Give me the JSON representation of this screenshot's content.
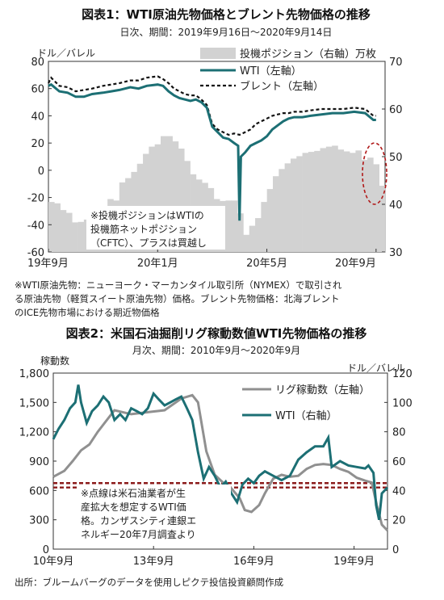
{
  "chart_data": [
    {
      "type": "line",
      "title": "図表1：WTI原油先物価格とブレント先物価格の推移",
      "subtitle": "日次、期間：2019年9月16日～2020年9月14日",
      "ylabel_left": "ドル／バレル",
      "ylim_left": [
        -60,
        80
      ],
      "ylim_right": [
        30,
        70
      ],
      "y_ticks_left": [
        "80",
        "60",
        "40",
        "20",
        "0",
        "-20",
        "-40",
        "-60"
      ],
      "y_ticks_right": [
        "70",
        "60",
        "50",
        "40",
        "30"
      ],
      "x_ticks": [
        "19年9月",
        "20年1月",
        "20年5月",
        "20年9月"
      ],
      "x_tick_pos": [
        0,
        4,
        8,
        12
      ],
      "series": [
        {
          "name": "投機ポジション（右軸）万枚",
          "kind": "bar",
          "axis": "right",
          "color": "#d2d2d2",
          "values": [
            40.5,
            40.2,
            38.8,
            38.2,
            36.2,
            36.3,
            36.8,
            37.9,
            38.5,
            39.5,
            41.1,
            40.8,
            44.6,
            45.5,
            46.8,
            48.5,
            50.6,
            52.1,
            52.6,
            54.3,
            54.3,
            53.2,
            51.7,
            49.1,
            46.3,
            45.2,
            44.5,
            43.4,
            41.1,
            40.7,
            40.8,
            40.8,
            38.1,
            33.6,
            35.5,
            37.1,
            40.5,
            43.2,
            45.9,
            47.4,
            48.6,
            49.6,
            50.1,
            50.8,
            51.0,
            51.2,
            51.8,
            52.1,
            52.3,
            51.5,
            51.1,
            50.8,
            51.3,
            49.3,
            49.8,
            48.4,
            43.9
          ]
        },
        {
          "name": "WTI（左軸）",
          "kind": "line",
          "axis": "left",
          "color": "#1c6f74",
          "x": [
            0,
            0.1,
            0.4,
            0.7,
            1.0,
            1.3,
            1.6,
            2.0,
            2.3,
            2.6,
            3.0,
            3.3,
            3.6,
            4.0,
            4.2,
            4.4,
            4.6,
            4.8,
            5.0,
            5.2,
            5.4,
            5.6,
            5.8,
            6.0,
            6.2,
            6.4,
            6.6,
            6.8,
            6.95,
            7.0,
            7.05,
            7.2,
            7.4,
            7.6,
            7.8,
            8.0,
            8.2,
            8.4,
            8.6,
            8.8,
            9.0,
            9.3,
            9.6,
            10.0,
            10.4,
            10.8,
            11.2,
            11.6,
            11.9,
            12.0
          ],
          "y": [
            62,
            63,
            58,
            57,
            54,
            54,
            56,
            57,
            58,
            59,
            61,
            60,
            62,
            63,
            62,
            58,
            55,
            53,
            52,
            51,
            52,
            50,
            46,
            32,
            28,
            24,
            23,
            20,
            18,
            -37,
            10,
            13,
            18,
            20,
            22,
            25,
            30,
            33,
            36,
            38,
            39,
            39,
            40,
            41,
            42,
            42,
            43,
            42,
            37,
            37
          ]
        },
        {
          "name": "ブレント（左軸）",
          "kind": "dashed",
          "axis": "left",
          "color": "#111111",
          "x": [
            0,
            0.1,
            0.4,
            0.7,
            1.0,
            1.3,
            1.6,
            2.0,
            2.3,
            2.6,
            3.0,
            3.3,
            3.6,
            4.0,
            4.2,
            4.4,
            4.6,
            4.8,
            5.0,
            5.2,
            5.4,
            5.6,
            5.8,
            6.0,
            6.2,
            6.4,
            6.6,
            6.8,
            7.0,
            7.2,
            7.4,
            7.6,
            7.8,
            8.0,
            8.2,
            8.4,
            8.6,
            8.8,
            9.0,
            9.3,
            9.6,
            10.0,
            10.4,
            10.8,
            11.2,
            11.6,
            11.9,
            12.0
          ],
          "y": [
            64,
            68,
            62,
            61,
            58,
            59,
            60,
            62,
            63,
            64,
            66,
            66,
            68,
            69,
            67,
            64,
            60,
            58,
            56,
            55,
            55,
            52,
            48,
            34,
            30,
            28,
            26,
            27,
            26,
            28,
            30,
            34,
            36,
            38,
            40,
            41,
            42,
            42,
            43,
            43,
            44,
            45,
            45,
            45,
            46,
            45,
            40,
            40
          ]
        }
      ],
      "annotations": [
        "※投機ポジションはWTIの",
        "投機筋ネットポジション",
        "（CFTC）、プラスは買越し"
      ]
    },
    {
      "type": "line",
      "title": "図表2：米国石油掘削リグ稼動数値WTI先物価格の推移",
      "subtitle": "月次、期間：2010年9月～2020年9月",
      "ylabel_left": "稼動数",
      "ylabel_right": "ドル／バレル",
      "ylim_left": [
        0,
        1800
      ],
      "ylim_right": [
        0,
        120
      ],
      "y_ticks_left": [
        "1,800",
        "1,500",
        "1,200",
        "900",
        "600",
        "300",
        "0"
      ],
      "y_ticks_right": [
        "120",
        "100",
        "80",
        "60",
        "40",
        "20",
        "0"
      ],
      "x_ticks": [
        "10年9月",
        "13年9月",
        "16年9月",
        "19年9月"
      ],
      "x_tick_pos": [
        2010.67,
        2013.67,
        2016.67,
        2019.67
      ],
      "xlim": [
        2010.67,
        2020.67
      ],
      "reference_lines_right": [
        42,
        45
      ],
      "reference_color": "#8b1a1a",
      "series": [
        {
          "name": "リグ稼動数（左軸）",
          "axis": "left",
          "color": "#909090",
          "x": [
            2010.67,
            2011.0,
            2011.25,
            2011.5,
            2011.75,
            2012.0,
            2012.5,
            2013.0,
            2013.5,
            2014.0,
            2014.5,
            2014.83,
            2015.0,
            2015.25,
            2015.5,
            2015.75,
            2016.0,
            2016.25,
            2016.4,
            2016.6,
            2016.83,
            2017.0,
            2017.25,
            2017.5,
            2017.75,
            2018.0,
            2018.25,
            2018.5,
            2018.75,
            2019.0,
            2019.25,
            2019.5,
            2019.75,
            2020.0,
            2020.2,
            2020.35,
            2020.5,
            2020.67
          ],
          "y": [
            740,
            800,
            900,
            1010,
            1070,
            1200,
            1420,
            1380,
            1400,
            1420,
            1540,
            1575,
            1500,
            1000,
            760,
            680,
            620,
            520,
            400,
            380,
            450,
            570,
            720,
            760,
            740,
            750,
            820,
            860,
            870,
            860,
            820,
            790,
            730,
            700,
            680,
            450,
            250,
            190
          ]
        },
        {
          "name": "WTI（右軸）",
          "axis": "right",
          "color": "#1c6f74",
          "x": [
            2010.67,
            2010.83,
            2011.0,
            2011.17,
            2011.33,
            2011.42,
            2011.5,
            2011.67,
            2011.83,
            2012.0,
            2012.17,
            2012.33,
            2012.5,
            2012.67,
            2012.83,
            2013.0,
            2013.17,
            2013.33,
            2013.5,
            2013.67,
            2013.83,
            2014.0,
            2014.17,
            2014.33,
            2014.5,
            2014.67,
            2014.83,
            2015.0,
            2015.17,
            2015.33,
            2015.5,
            2015.67,
            2015.83,
            2016.0,
            2016.17,
            2016.33,
            2016.5,
            2016.67,
            2016.83,
            2017.0,
            2017.25,
            2017.5,
            2017.75,
            2018.0,
            2018.25,
            2018.5,
            2018.75,
            2018.9,
            2019.0,
            2019.25,
            2019.5,
            2019.75,
            2020.0,
            2020.1,
            2020.25,
            2020.33,
            2020.42,
            2020.5,
            2020.67
          ],
          "y": [
            75,
            82,
            88,
            96,
            100,
            112,
            100,
            86,
            94,
            98,
            104,
            100,
            88,
            92,
            88,
            96,
            94,
            92,
            96,
            106,
            102,
            98,
            100,
            102,
            104,
            96,
            88,
            66,
            48,
            56,
            50,
            42,
            46,
            38,
            32,
            44,
            48,
            45,
            50,
            53,
            50,
            47,
            50,
            61,
            66,
            70,
            70,
            76,
            56,
            60,
            57,
            56,
            55,
            57,
            52,
            30,
            20,
            38,
            42
          ]
        }
      ],
      "annotations": [
        "※点線は米石油業者が生",
        "産拡大を想定するWTI価",
        "格。カンザスシティ連銀エ",
        "ネルギー20年7月調査より"
      ]
    }
  ],
  "notes": {
    "chart1_note": [
      "※WTI原油先物：ニューヨーク・マーカンタイル取引所（NYMEX）で取引され",
      "る原油先物（軽質スイート原油先物）価格。ブレント先物価格：北海ブレント",
      "のICE先物市場における期近物価格"
    ],
    "source": "出所：ブルームバーグのデータを使用しピクテ投信投資顧問作成"
  }
}
